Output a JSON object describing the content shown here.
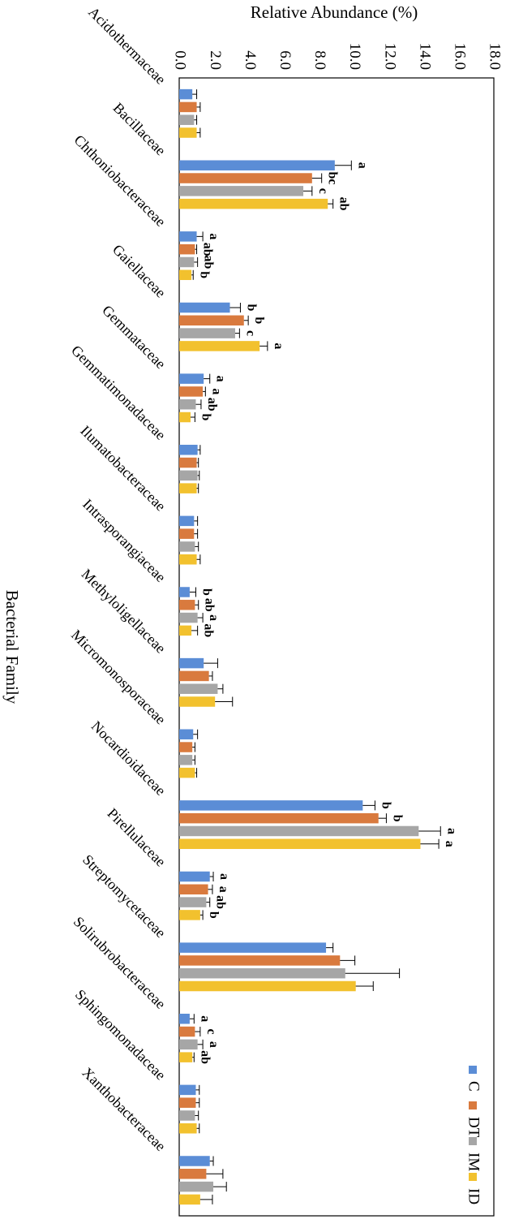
{
  "chart_data": {
    "type": "bar",
    "orientation": "horizontal",
    "title": "",
    "xlabel": "Relative Abundance (%)",
    "ylabel": "Bacterial Family",
    "xlim": [
      0,
      18
    ],
    "xticks": [
      "0.0",
      "2.0",
      "4.0",
      "6.0",
      "8.0",
      "10.0",
      "12.0",
      "14.0",
      "16.0",
      "18.0"
    ],
    "grid": false,
    "legend_position": "bottom-right",
    "categories": [
      "Acidothermaceae",
      "Bacillaceae",
      "Chthoniobacteraceae",
      "Gaiellaceae",
      "Gemmataceae",
      "Gemmatimonadaceae",
      "Ilumatobacteraceae",
      "Intrasporangiaceae",
      "Methyloligellaceae",
      "Micromonosporaceae",
      "Nocardioidaceae",
      "Pirellulaceae",
      "Streptomycetaceae",
      "Solirubrobacteraceae",
      "Sphingomonadaceae",
      "Xanthobacteraceae"
    ],
    "series": [
      {
        "name": "C",
        "color": "#5b8dd6",
        "values": [
          0.75,
          8.9,
          1.0,
          2.9,
          1.4,
          1.05,
          0.85,
          0.6,
          1.4,
          0.8,
          10.5,
          1.75,
          8.4,
          0.6,
          0.95,
          1.75
        ],
        "errors": [
          0.25,
          0.95,
          0.35,
          0.6,
          0.35,
          0.15,
          0.2,
          0.35,
          0.8,
          0.25,
          0.7,
          0.2,
          0.4,
          0.25,
          0.2,
          0.2
        ],
        "labels": [
          "",
          "a",
          "a",
          "b",
          "a",
          "",
          "",
          "b",
          "",
          "",
          "b",
          "a",
          "",
          "a",
          "",
          ""
        ]
      },
      {
        "name": "DT",
        "color": "#d97a3e",
        "values": [
          1.0,
          7.6,
          0.9,
          3.7,
          1.35,
          1.0,
          0.85,
          0.9,
          1.7,
          0.75,
          11.4,
          1.65,
          9.2,
          0.9,
          0.95,
          1.55
        ],
        "errors": [
          0.2,
          0.55,
          0.1,
          0.25,
          0.15,
          0.1,
          0.2,
          0.2,
          0.2,
          0.15,
          0.45,
          0.25,
          0.85,
          0.3,
          0.2,
          0.95
        ],
        "labels": [
          "",
          "bc",
          "ab",
          "b",
          "a",
          "",
          "",
          "ab",
          "",
          "",
          "b",
          "a",
          "",
          "c",
          "",
          ""
        ]
      },
      {
        "name": "IM",
        "color": "#a6a6a6",
        "values": [
          0.85,
          7.1,
          0.85,
          3.2,
          0.95,
          1.05,
          0.9,
          1.05,
          2.2,
          0.75,
          13.7,
          1.55,
          9.5,
          1.05,
          0.9,
          1.95
        ],
        "errors": [
          0.15,
          0.5,
          0.2,
          0.25,
          0.3,
          0.1,
          0.2,
          0.3,
          0.3,
          0.15,
          1.25,
          0.2,
          3.1,
          0.3,
          0.2,
          0.75
        ],
        "labels": [
          "",
          "c",
          "ab",
          "c",
          "ab",
          "",
          "",
          "a",
          "",
          "",
          "a",
          "ab",
          "",
          "a",
          "",
          ""
        ]
      },
      {
        "name": "ID",
        "color": "#f2c12e",
        "values": [
          1.0,
          8.5,
          0.7,
          4.6,
          0.65,
          1.0,
          1.0,
          0.7,
          2.05,
          0.9,
          13.8,
          1.2,
          10.1,
          0.75,
          1.0,
          1.2
        ],
        "errors": [
          0.2,
          0.3,
          0.1,
          0.45,
          0.25,
          0.1,
          0.2,
          0.35,
          1.0,
          0.1,
          1.05,
          0.15,
          1.0,
          0.1,
          0.15,
          0.7
        ],
        "labels": [
          "",
          "ab",
          "b",
          "a",
          "b",
          "",
          "",
          "ab",
          "",
          "",
          "a",
          "b",
          "",
          "ab",
          "",
          ""
        ]
      }
    ]
  }
}
